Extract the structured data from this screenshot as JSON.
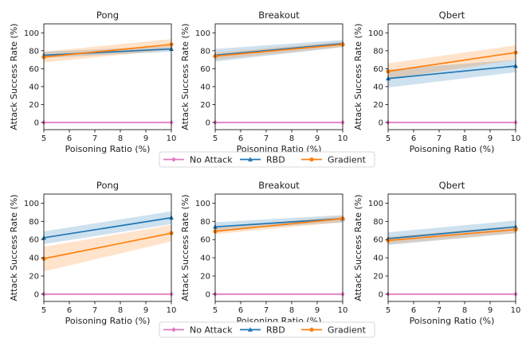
{
  "legend": {
    "entries": [
      {
        "label": "No Attack",
        "color": "#e377c2",
        "marker": "diamond"
      },
      {
        "label": "RBD",
        "color": "#1f77b4",
        "marker": "triangle"
      },
      {
        "label": "Gradient",
        "color": "#ff7f0e",
        "marker": "circle"
      }
    ]
  },
  "chart_data": [
    {
      "type": "line",
      "title": "Pong",
      "xlabel": "Poisoning Ratio (%)",
      "ylabel": "Attack Success Rate (%)",
      "x": [
        5,
        10
      ],
      "xlim": [
        5,
        10
      ],
      "ylim": [
        -8,
        110
      ],
      "xticks": [
        5,
        6,
        7,
        8,
        9,
        10
      ],
      "yticks": [
        0,
        20,
        40,
        60,
        80,
        100
      ],
      "series": [
        {
          "name": "No Attack",
          "values": [
            0,
            0
          ],
          "band": [
            [
              0,
              0
            ],
            [
              0,
              0
            ]
          ]
        },
        {
          "name": "RBD",
          "values": [
            75,
            82
          ],
          "band": [
            [
              72,
              79
            ],
            [
              79,
              85
            ]
          ]
        },
        {
          "name": "Gradient",
          "values": [
            73,
            87
          ],
          "band": [
            [
              67,
              79
            ],
            [
              81,
              93
            ]
          ]
        }
      ]
    },
    {
      "type": "line",
      "title": "Breakout",
      "xlabel": "Poisoning Ratio (%)",
      "ylabel": "Attack Success Rate (%)",
      "x": [
        5,
        10
      ],
      "xlim": [
        5,
        10
      ],
      "ylim": [
        -8,
        110
      ],
      "xticks": [
        5,
        6,
        7,
        8,
        9,
        10
      ],
      "yticks": [
        0,
        20,
        40,
        60,
        80,
        100
      ],
      "series": [
        {
          "name": "No Attack",
          "values": [
            0,
            0
          ],
          "band": [
            [
              0,
              0
            ],
            [
              0,
              0
            ]
          ]
        },
        {
          "name": "RBD",
          "values": [
            75,
            88
          ],
          "band": [
            [
              68,
              82
            ],
            [
              84,
              92
            ]
          ]
        },
        {
          "name": "Gradient",
          "values": [
            74,
            87
          ],
          "band": [
            [
              70,
              78
            ],
            [
              84,
              90
            ]
          ]
        }
      ]
    },
    {
      "type": "line",
      "title": "Qbert",
      "xlabel": "Poisoning Ratio (%)",
      "ylabel": "Attack Success Rate (%)",
      "x": [
        5,
        10
      ],
      "xlim": [
        5,
        10
      ],
      "ylim": [
        -8,
        110
      ],
      "xticks": [
        5,
        6,
        7,
        8,
        9,
        10
      ],
      "yticks": [
        0,
        20,
        40,
        60,
        80,
        100
      ],
      "series": [
        {
          "name": "No Attack",
          "values": [
            0,
            0
          ],
          "band": [
            [
              0,
              0
            ],
            [
              0,
              0
            ]
          ]
        },
        {
          "name": "RBD",
          "values": [
            49,
            63
          ],
          "band": [
            [
              39,
              59
            ],
            [
              56,
              70
            ]
          ]
        },
        {
          "name": "Gradient",
          "values": [
            57,
            78
          ],
          "band": [
            [
              48,
              66
            ],
            [
              70,
              86
            ]
          ]
        }
      ]
    },
    {
      "type": "line",
      "title": "Pong",
      "xlabel": "Poisoning Ratio (%)",
      "ylabel": "Attack Success Rate (%)",
      "x": [
        5,
        10
      ],
      "xlim": [
        5,
        10
      ],
      "ylim": [
        -8,
        110
      ],
      "xticks": [
        5,
        6,
        7,
        8,
        9,
        10
      ],
      "yticks": [
        0,
        20,
        40,
        60,
        80,
        100
      ],
      "series": [
        {
          "name": "No Attack",
          "values": [
            0,
            0
          ],
          "band": [
            [
              0,
              0
            ],
            [
              0,
              0
            ]
          ]
        },
        {
          "name": "RBD",
          "values": [
            62,
            84
          ],
          "band": [
            [
              55,
              69
            ],
            [
              77,
              91
            ]
          ]
        },
        {
          "name": "Gradient",
          "values": [
            39,
            67
          ],
          "band": [
            [
              25,
              52
            ],
            [
              58,
              76
            ]
          ]
        }
      ]
    },
    {
      "type": "line",
      "title": "Breakout",
      "xlabel": "Poisoning Ratio (%)",
      "ylabel": "Attack Success Rate (%)",
      "x": [
        5,
        10
      ],
      "xlim": [
        5,
        10
      ],
      "ylim": [
        -8,
        110
      ],
      "xticks": [
        5,
        6,
        7,
        8,
        9,
        10
      ],
      "yticks": [
        0,
        20,
        40,
        60,
        80,
        100
      ],
      "series": [
        {
          "name": "No Attack",
          "values": [
            0,
            0
          ],
          "band": [
            [
              0,
              0
            ],
            [
              0,
              0
            ]
          ]
        },
        {
          "name": "RBD",
          "values": [
            74,
            83
          ],
          "band": [
            [
              70,
              79
            ],
            [
              79,
              87
            ]
          ]
        },
        {
          "name": "Gradient",
          "values": [
            69,
            83
          ],
          "band": [
            [
              66,
              73
            ],
            [
              79,
              86
            ]
          ]
        }
      ]
    },
    {
      "type": "line",
      "title": "Qbert",
      "xlabel": "Poisoning Ratio (%)",
      "ylabel": "Attack Success Rate (%)",
      "x": [
        5,
        10
      ],
      "xlim": [
        5,
        10
      ],
      "ylim": [
        -8,
        110
      ],
      "xticks": [
        5,
        6,
        7,
        8,
        9,
        10
      ],
      "yticks": [
        0,
        20,
        40,
        60,
        80,
        100
      ],
      "series": [
        {
          "name": "No Attack",
          "values": [
            0,
            0
          ],
          "band": [
            [
              0,
              0
            ],
            [
              0,
              0
            ]
          ]
        },
        {
          "name": "RBD",
          "values": [
            61,
            74
          ],
          "band": [
            [
              54,
              68
            ],
            [
              67,
              81
            ]
          ]
        },
        {
          "name": "Gradient",
          "values": [
            59,
            71
          ],
          "band": [
            [
              55,
              63
            ],
            [
              67,
              75
            ]
          ]
        }
      ]
    }
  ]
}
